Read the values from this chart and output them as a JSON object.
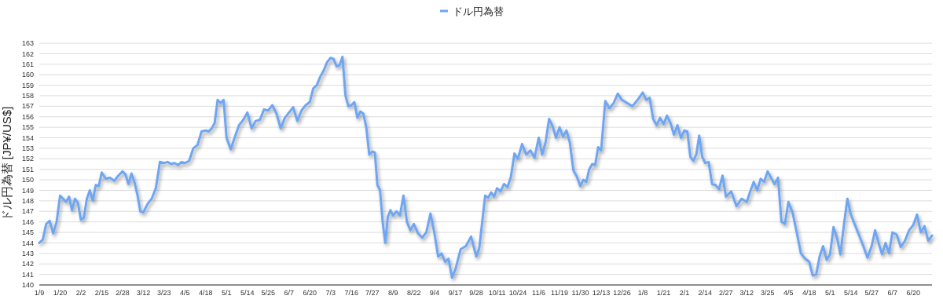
{
  "chart_data": {
    "type": "line",
    "ylabel": "ドル円為替 [JP¥/US$]",
    "legend": "top",
    "grid": "y",
    "line_style": "solid",
    "marker": "none",
    "ylim": [
      140,
      163
    ],
    "yticks": [
      140,
      141,
      142,
      143,
      144,
      145,
      146,
      147,
      148,
      149,
      150,
      151,
      152,
      153,
      154,
      155,
      156,
      157,
      158,
      159,
      160,
      161,
      162,
      163
    ],
    "categories": [
      "1/9",
      null,
      null,
      null,
      null,
      null,
      "1/20",
      null,
      null,
      null,
      null,
      null,
      null,
      "2/2",
      null,
      null,
      null,
      null,
      null,
      null,
      "2/15",
      null,
      null,
      null,
      null,
      "2/28",
      null,
      null,
      null,
      null,
      null,
      null,
      "3/12",
      null,
      null,
      null,
      null,
      "3/23",
      null,
      null,
      null,
      null,
      null,
      "4/5",
      null,
      null,
      null,
      null,
      "4/18",
      null,
      null,
      null,
      null,
      null,
      null,
      "5/1",
      null,
      null,
      null,
      null,
      "5/14",
      null,
      null,
      null,
      null,
      "5/25",
      null,
      null,
      null,
      null,
      "6/7",
      null,
      null,
      null,
      null,
      "6/20",
      null,
      null,
      null,
      null,
      null,
      "7/3",
      null,
      null,
      null,
      null,
      null,
      null,
      "7/16",
      null,
      null,
      null,
      null,
      null,
      null,
      "7/27",
      null,
      null,
      null,
      null,
      null,
      null,
      null,
      "8/9",
      null,
      null,
      null,
      null,
      null,
      "8/22",
      null,
      null,
      null,
      null,
      "9/4",
      null,
      null,
      null,
      null,
      null,
      "9/17",
      null,
      null,
      null,
      "9/28",
      null,
      null,
      null,
      null,
      null,
      null,
      "10/11",
      null,
      null,
      null,
      null,
      null,
      "10/24",
      null,
      null,
      null,
      null,
      "11/6",
      null,
      null,
      null,
      null,
      null,
      "11/19",
      null,
      null,
      null,
      null,
      null,
      "11/30",
      null,
      null,
      null,
      null,
      null,
      null,
      "12/13",
      null,
      null,
      null,
      null,
      "12/26",
      null,
      null,
      null,
      "1/8",
      null,
      null,
      null,
      null,
      null,
      "1/21",
      null,
      null,
      null,
      null,
      null,
      "2/1",
      null,
      null,
      null,
      null,
      null,
      null,
      "2/14",
      null,
      null,
      null,
      null,
      null,
      "2/27",
      null,
      null,
      null,
      "3/12",
      null,
      null,
      null,
      null,
      null,
      "3/25",
      null,
      null,
      null,
      null,
      null,
      "4/5",
      null,
      null,
      null,
      null,
      "4/18",
      null,
      null,
      null,
      null,
      null,
      "5/1",
      null,
      null,
      null,
      null,
      null,
      "5/14",
      null,
      null,
      null,
      null,
      "5/27",
      null,
      null,
      null,
      null,
      null,
      "6/7",
      null,
      null,
      null,
      null,
      "6/20",
      null,
      null,
      null,
      null,
      null
    ],
    "series": [
      {
        "name": "ドル円為替",
        "color": "#6ea6f2",
        "values": [
          144.0,
          144.3,
          145.8,
          146.1,
          144.9,
          146.0,
          148.5,
          148.2,
          147.9,
          148.4,
          147.1,
          148.2,
          147.8,
          146.2,
          146.4,
          148.2,
          149.0,
          148.0,
          149.5,
          149.4,
          150.7,
          150.1,
          150.2,
          149.9,
          150.4,
          150.8,
          150.5,
          149.6,
          150.6,
          149.8,
          148.6,
          147.0,
          146.9,
          147.7,
          148.2,
          149.2,
          151.7,
          151.6,
          151.7,
          151.5,
          151.6,
          151.4,
          151.7,
          151.6,
          151.8,
          153.0,
          153.3,
          154.6,
          154.7,
          154.6,
          154.9,
          155.4,
          157.6,
          157.3,
          157.6,
          154.0,
          152.9,
          154.1,
          155.2,
          155.7,
          156.4,
          154.9,
          155.6,
          155.7,
          156.7,
          156.6,
          157.1,
          156.3,
          154.9,
          155.9,
          156.4,
          156.9,
          155.6,
          156.6,
          157.1,
          157.4,
          158.7,
          159.0,
          159.8,
          160.4,
          161.2,
          161.6,
          161.5,
          160.8,
          160.9,
          161.7,
          158.0,
          157.0,
          157.1,
          157.4,
          155.9,
          156.5,
          156.3,
          155.0,
          152.4,
          152.7,
          152.6,
          149.5,
          149.0,
          146.0,
          144.0,
          146.5,
          147.1,
          146.6,
          147.0,
          146.6,
          148.5,
          146.0,
          145.2,
          145.8,
          144.9,
          144.5,
          145.0,
          146.8,
          144.8,
          142.7,
          143.0,
          142.2,
          142.5,
          140.7,
          141.5,
          143.4,
          143.7,
          144.6,
          142.7,
          143.5,
          146.0,
          148.5,
          148.3,
          148.8,
          148.4,
          149.2,
          148.9,
          149.6,
          149.3,
          150.3,
          152.5,
          152.0,
          153.4,
          152.4,
          152.8,
          152.1,
          154.0,
          152.4,
          153.6,
          155.8,
          155.1,
          154.0,
          155.0,
          154.1,
          154.7,
          153.5,
          150.9,
          150.3,
          149.4,
          150.0,
          149.8,
          151.0,
          151.5,
          151.4,
          153.1,
          152.8,
          157.5,
          156.8,
          157.3,
          158.2,
          157.6,
          157.3,
          157.0,
          157.6,
          158.3,
          157.6,
          157.8,
          155.8,
          155.2,
          155.9,
          155.3,
          156.1,
          155.4,
          154.3,
          155.2,
          154.0,
          154.7,
          154.6,
          152.2,
          151.8,
          152.4,
          154.2,
          152.2,
          151.6,
          151.7,
          149.6,
          149.5,
          149.1,
          150.4,
          148.4,
          148.9,
          147.5,
          148.2,
          147.9,
          148.9,
          149.8,
          149.0,
          150.1,
          149.8,
          150.8,
          150.2,
          149.6,
          150.2,
          146.0,
          145.8,
          147.9,
          146.9,
          145.0,
          143.0,
          142.5,
          142.2,
          140.9,
          141.0,
          142.7,
          143.7,
          142.4,
          142.9,
          145.5,
          144.5,
          142.9,
          145.7,
          148.2,
          146.7,
          145.7,
          144.7,
          143.7,
          142.6,
          143.7,
          145.2,
          144.0,
          142.9,
          144.0,
          143.0,
          145.0,
          144.8,
          143.6,
          144.2,
          145.2,
          145.7,
          146.7,
          145.0,
          145.6,
          144.2,
          144.7
        ]
      }
    ]
  }
}
